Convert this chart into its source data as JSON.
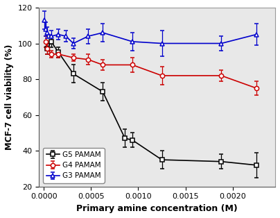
{
  "g5_x": [
    3.91e-05,
    7.81e-05,
    0.000156,
    0.000313,
    0.000625,
    0.000859,
    0.000938,
    0.00125,
    0.00188,
    0.00225
  ],
  "g5_y": [
    97,
    101,
    95,
    83,
    73,
    47,
    46,
    35,
    34,
    32
  ],
  "g5_yerr": [
    3,
    3,
    3,
    5,
    5,
    5,
    4,
    5,
    4,
    7
  ],
  "g4_x": [
    1.95e-05,
    3.91e-05,
    7.81e-05,
    0.000156,
    0.000313,
    0.000469,
    0.000625,
    0.000938,
    0.00125,
    0.00188,
    0.00225
  ],
  "g4_y": [
    101,
    97,
    94,
    94,
    92,
    91,
    88,
    88,
    82,
    82,
    75
  ],
  "g4_yerr": [
    3,
    3,
    2,
    2,
    2,
    3,
    3,
    4,
    5,
    3,
    4
  ],
  "g3_x": [
    9.77e-06,
    1.95e-05,
    3.91e-05,
    7.81e-05,
    0.000156,
    0.000234,
    0.000313,
    0.000469,
    0.000625,
    0.000938,
    0.00125,
    0.00188,
    0.00225
  ],
  "g3_y": [
    113,
    108,
    106,
    104,
    105,
    104,
    100,
    104,
    106,
    101,
    100,
    100,
    105
  ],
  "g3_yerr": [
    5,
    4,
    3,
    3,
    3,
    3,
    3,
    4,
    5,
    5,
    7,
    4,
    6
  ],
  "g5_color": "#000000",
  "g4_color": "#cc0000",
  "g3_color": "#0000cc",
  "xlabel": "Primary amine concentration (M)",
  "ylabel": "MCF-7 cell viability (%)",
  "ylim": [
    20,
    120
  ],
  "xlim": [
    -5e-05,
    0.00245
  ],
  "yticks": [
    20,
    40,
    60,
    80,
    100,
    120
  ],
  "xticks": [
    0.0,
    0.0005,
    0.001,
    0.0015,
    0.002
  ],
  "xticklabels": [
    "0.0000",
    "0.0005",
    "0.0010",
    "0.0015",
    "0.0020"
  ],
  "legend_labels": [
    "G5 PAMAM",
    "G4 PAMAM",
    "G3 PAMAM"
  ],
  "bg_color": "#e8e8e8",
  "figure_bg": "#ffffff"
}
